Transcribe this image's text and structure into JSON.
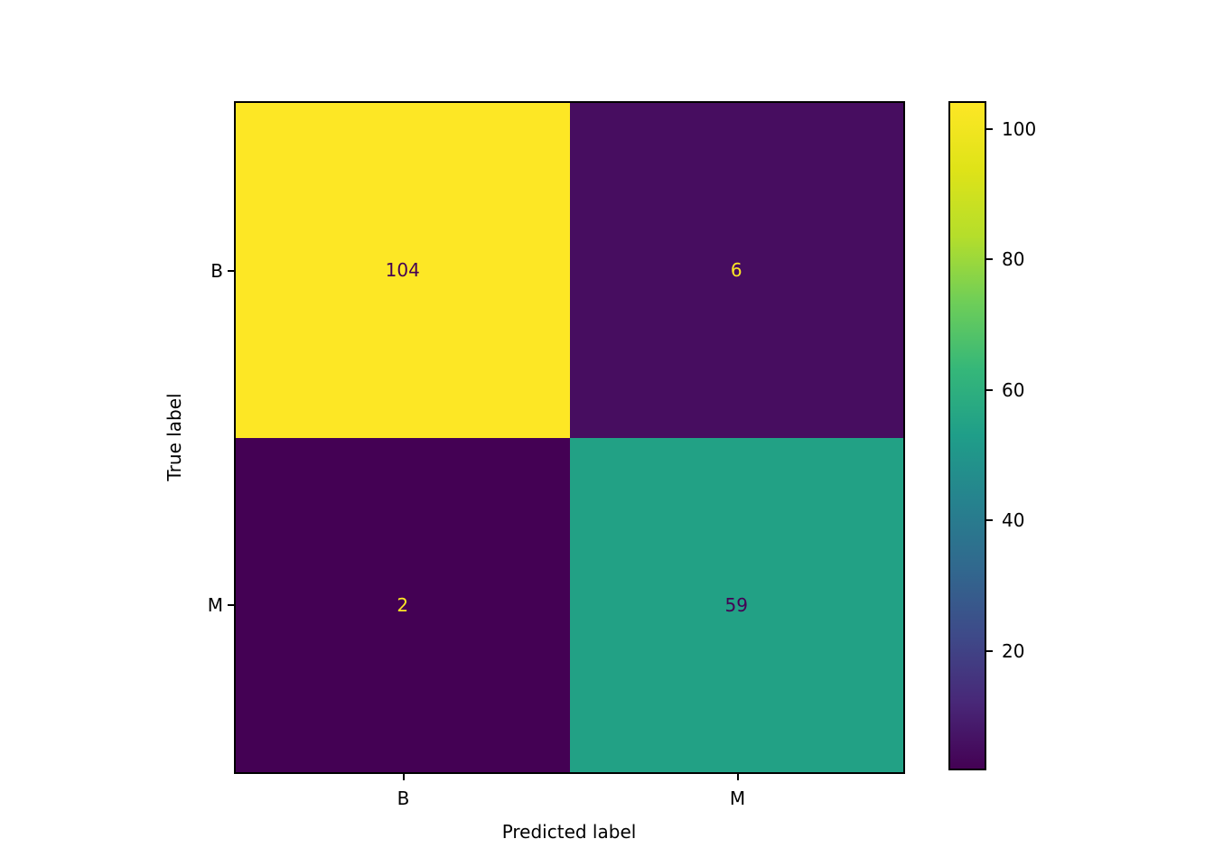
{
  "figure": {
    "background": "#ffffff"
  },
  "chart_data": {
    "type": "heatmap",
    "subtype": "confusion_matrix",
    "title": "",
    "xlabel": "Predicted label",
    "ylabel": "True label",
    "x_tick_labels": [
      "B",
      "M"
    ],
    "y_tick_labels": [
      "B",
      "M"
    ],
    "matrix": [
      [
        104,
        6
      ],
      [
        2,
        59
      ]
    ],
    "vmin": 2,
    "vmax": 104,
    "colormap": "viridis",
    "grid": false,
    "legend_position": "none",
    "cell_colors": [
      [
        "#fde725",
        "#470d60"
      ],
      [
        "#440154",
        "#22a185"
      ]
    ],
    "cell_text_colors": [
      [
        "#440154",
        "#fde725"
      ],
      [
        "#fde725",
        "#440154"
      ]
    ],
    "colorbar": {
      "tick_values": [
        100,
        80,
        60,
        40,
        20
      ],
      "gradient_stops": [
        "#440154",
        "#482878",
        "#3e4a89",
        "#31688e",
        "#26828e",
        "#1f9e89",
        "#35b779",
        "#6ece58",
        "#b5de2b",
        "#dfe318",
        "#fde725"
      ]
    }
  }
}
